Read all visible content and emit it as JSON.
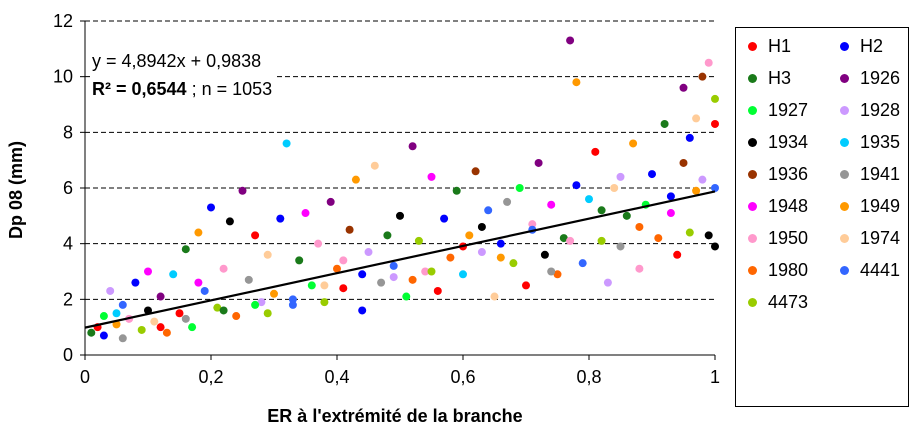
{
  "chart_data": {
    "type": "scatter",
    "xlabel": "ER à l'extrémité de la branche",
    "ylabel": "Dp 08 (mm)",
    "xlim": [
      0,
      1
    ],
    "ylim": [
      0,
      12
    ],
    "xticks": [
      "0",
      "0,2",
      "0,4",
      "0,6",
      "0,8",
      "1"
    ],
    "yticks": [
      "0",
      "2",
      "4",
      "6",
      "8",
      "10",
      "12"
    ],
    "grid": "horizontal-dashed",
    "legend_position": "right",
    "trendline": {
      "slope": 4.8942,
      "intercept": 0.9838,
      "equation": "y = 4,8942x + 0,9838",
      "r2_label": "R² = 0,6544",
      "n_label": "; n = 1053"
    },
    "series": [
      {
        "name": "H1",
        "color": "#ff0000"
      },
      {
        "name": "H2",
        "color": "#0000ff"
      },
      {
        "name": "H3",
        "color": "#1a7a1a"
      },
      {
        "name": "1926",
        "color": "#800080"
      },
      {
        "name": "1927",
        "color": "#00ff33"
      },
      {
        "name": "1928",
        "color": "#cc99ff"
      },
      {
        "name": "1934",
        "color": "#000000"
      },
      {
        "name": "1935",
        "color": "#00ccff"
      },
      {
        "name": "1936",
        "color": "#993300"
      },
      {
        "name": "1941",
        "color": "#969696"
      },
      {
        "name": "1948",
        "color": "#ff00ff"
      },
      {
        "name": "1949",
        "color": "#ff9900"
      },
      {
        "name": "1950",
        "color": "#ff99cc"
      },
      {
        "name": "1974",
        "color": "#ffcc99"
      },
      {
        "name": "1980",
        "color": "#ff6600"
      },
      {
        "name": "4441",
        "color": "#3366ff"
      },
      {
        "name": "4473",
        "color": "#99cc00"
      }
    ],
    "points": [
      [
        0.01,
        0.8,
        2
      ],
      [
        0.02,
        1.0,
        0
      ],
      [
        0.03,
        0.7,
        1
      ],
      [
        0.03,
        1.4,
        4
      ],
      [
        0.04,
        2.3,
        5
      ],
      [
        0.05,
        1.1,
        11
      ],
      [
        0.06,
        0.6,
        9
      ],
      [
        0.06,
        1.8,
        15
      ],
      [
        0.07,
        1.3,
        12
      ],
      [
        0.08,
        2.6,
        1
      ],
      [
        0.09,
        0.9,
        16
      ],
      [
        0.1,
        1.6,
        6
      ],
      [
        0.1,
        3.0,
        10
      ],
      [
        0.11,
        1.2,
        13
      ],
      [
        0.12,
        2.1,
        3
      ],
      [
        0.13,
        0.8,
        14
      ],
      [
        0.14,
        2.9,
        7
      ],
      [
        0.15,
        1.5,
        0
      ],
      [
        0.16,
        3.8,
        2
      ],
      [
        0.17,
        1.0,
        4
      ],
      [
        0.18,
        4.4,
        11
      ],
      [
        0.19,
        2.3,
        15
      ],
      [
        0.2,
        5.3,
        1
      ],
      [
        0.21,
        1.7,
        16
      ],
      [
        0.22,
        3.1,
        12
      ],
      [
        0.23,
        4.8,
        6
      ],
      [
        0.24,
        1.4,
        14
      ],
      [
        0.25,
        5.9,
        3
      ],
      [
        0.26,
        2.7,
        9
      ],
      [
        0.27,
        4.3,
        0
      ],
      [
        0.28,
        1.9,
        5
      ],
      [
        0.29,
        3.6,
        13
      ],
      [
        0.3,
        2.2,
        11
      ],
      [
        0.31,
        4.9,
        1
      ],
      [
        0.32,
        7.6,
        7
      ],
      [
        0.33,
        1.8,
        15
      ],
      [
        0.34,
        3.4,
        2
      ],
      [
        0.35,
        5.1,
        10
      ],
      [
        0.36,
        2.5,
        4
      ],
      [
        0.37,
        4.0,
        12
      ],
      [
        0.38,
        1.9,
        16
      ],
      [
        0.39,
        5.5,
        3
      ],
      [
        0.4,
        3.1,
        14
      ],
      [
        0.41,
        2.4,
        0
      ],
      [
        0.42,
        4.5,
        8
      ],
      [
        0.43,
        6.3,
        11
      ],
      [
        0.44,
        1.6,
        1
      ],
      [
        0.45,
        3.7,
        5
      ],
      [
        0.46,
        6.8,
        13
      ],
      [
        0.47,
        2.6,
        9
      ],
      [
        0.48,
        4.3,
        2
      ],
      [
        0.49,
        3.2,
        15
      ],
      [
        0.5,
        5.0,
        6
      ],
      [
        0.51,
        2.1,
        4
      ],
      [
        0.52,
        7.5,
        3
      ],
      [
        0.53,
        4.1,
        16
      ],
      [
        0.54,
        3.0,
        12
      ],
      [
        0.55,
        6.4,
        10
      ],
      [
        0.56,
        2.3,
        0
      ],
      [
        0.57,
        4.9,
        1
      ],
      [
        0.58,
        3.5,
        14
      ],
      [
        0.59,
        5.9,
        2
      ],
      [
        0.6,
        2.9,
        7
      ],
      [
        0.61,
        4.3,
        11
      ],
      [
        0.62,
        6.6,
        8
      ],
      [
        0.63,
        3.7,
        5
      ],
      [
        0.64,
        5.2,
        15
      ],
      [
        0.65,
        2.1,
        13
      ],
      [
        0.66,
        4.0,
        1
      ],
      [
        0.67,
        5.5,
        9
      ],
      [
        0.68,
        3.3,
        16
      ],
      [
        0.69,
        6.0,
        4
      ],
      [
        0.7,
        2.5,
        0
      ],
      [
        0.71,
        4.7,
        12
      ],
      [
        0.72,
        6.9,
        3
      ],
      [
        0.73,
        3.6,
        6
      ],
      [
        0.74,
        5.4,
        10
      ],
      [
        0.75,
        2.9,
        14
      ],
      [
        0.76,
        4.2,
        2
      ],
      [
        0.77,
        11.3,
        3
      ],
      [
        0.78,
        9.8,
        11
      ],
      [
        0.78,
        6.1,
        1
      ],
      [
        0.79,
        3.3,
        15
      ],
      [
        0.8,
        5.6,
        7
      ],
      [
        0.81,
        7.3,
        0
      ],
      [
        0.82,
        4.1,
        16
      ],
      [
        0.83,
        2.6,
        5
      ],
      [
        0.84,
        6.0,
        13
      ],
      [
        0.85,
        3.9,
        9
      ],
      [
        0.86,
        5.0,
        2
      ],
      [
        0.87,
        7.6,
        11
      ],
      [
        0.88,
        3.1,
        12
      ],
      [
        0.89,
        5.4,
        4
      ],
      [
        0.9,
        6.5,
        1
      ],
      [
        0.91,
        4.2,
        14
      ],
      [
        0.92,
        8.3,
        2
      ],
      [
        0.93,
        5.1,
        10
      ],
      [
        0.94,
        3.6,
        0
      ],
      [
        0.95,
        6.9,
        8
      ],
      [
        0.95,
        9.6,
        3
      ],
      [
        0.96,
        4.4,
        16
      ],
      [
        0.96,
        7.8,
        1
      ],
      [
        0.97,
        5.9,
        11
      ],
      [
        0.97,
        8.5,
        13
      ],
      [
        0.98,
        6.3,
        5
      ],
      [
        0.98,
        10.0,
        8
      ],
      [
        0.99,
        4.3,
        6
      ],
      [
        0.99,
        10.5,
        12
      ],
      [
        1.0,
        8.3,
        0
      ],
      [
        1.0,
        6.0,
        15
      ],
      [
        1.0,
        9.2,
        16
      ],
      [
        1.0,
        3.9,
        6
      ],
      [
        0.12,
        1.0,
        0
      ],
      [
        0.22,
        1.6,
        2
      ],
      [
        0.33,
        2.0,
        15
      ],
      [
        0.44,
        2.9,
        1
      ],
      [
        0.55,
        3.0,
        16
      ],
      [
        0.66,
        3.5,
        11
      ],
      [
        0.77,
        4.1,
        12
      ],
      [
        0.88,
        4.6,
        14
      ],
      [
        0.16,
        1.3,
        9
      ],
      [
        0.27,
        1.8,
        4
      ],
      [
        0.38,
        2.5,
        13
      ],
      [
        0.49,
        2.8,
        5
      ],
      [
        0.6,
        3.9,
        0
      ],
      [
        0.71,
        4.5,
        15
      ],
      [
        0.82,
        5.2,
        2
      ],
      [
        0.93,
        5.7,
        1
      ],
      [
        0.05,
        1.5,
        7
      ],
      [
        0.18,
        2.6,
        10
      ],
      [
        0.29,
        1.5,
        16
      ],
      [
        0.41,
        3.4,
        12
      ],
      [
        0.52,
        2.7,
        14
      ],
      [
        0.63,
        4.6,
        6
      ],
      [
        0.74,
        3.0,
        9
      ],
      [
        0.85,
        6.4,
        5
      ]
    ]
  },
  "legend": {
    "items": [
      "H1",
      "H2",
      "H3",
      "1926",
      "1927",
      "1928",
      "1934",
      "1935",
      "1936",
      "1941",
      "1948",
      "1949",
      "1950",
      "1974",
      "1980",
      "4441",
      "4473"
    ]
  }
}
